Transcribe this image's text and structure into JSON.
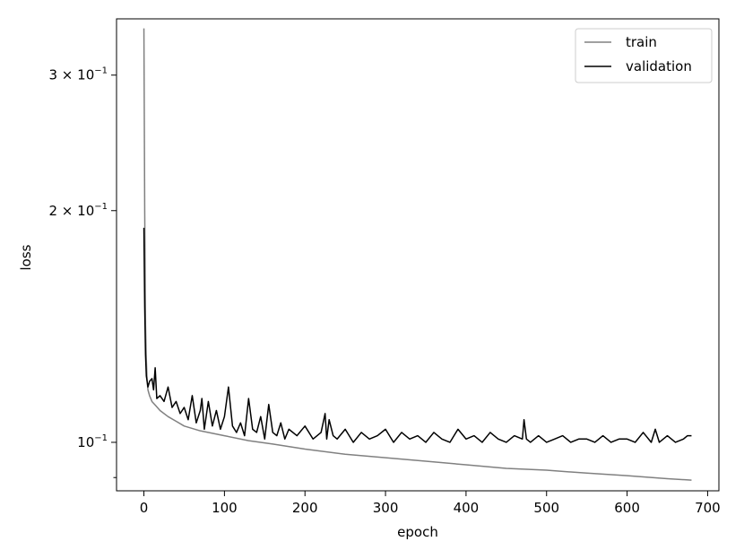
{
  "chart_data": {
    "type": "line",
    "title": "",
    "xlabel": "epoch",
    "ylabel": "loss",
    "xscale": "linear",
    "yscale": "log",
    "xlim": [
      -34,
      714
    ],
    "ylim": [
      0.0865,
      0.355
    ],
    "grid": false,
    "legend_position": "top-right",
    "x_ticks": [
      {
        "value": 0,
        "label": "0"
      },
      {
        "value": 100,
        "label": "100"
      },
      {
        "value": 200,
        "label": "200"
      },
      {
        "value": 300,
        "label": "300"
      },
      {
        "value": 400,
        "label": "400"
      },
      {
        "value": 500,
        "label": "500"
      },
      {
        "value": 600,
        "label": "600"
      },
      {
        "value": 700,
        "label": "700"
      }
    ],
    "y_ticks": [
      {
        "value": 0.1,
        "base": "10",
        "exponent": "−1"
      },
      {
        "value": 0.2,
        "base": "2 × 10",
        "exponent": "−1"
      },
      {
        "value": 0.3,
        "base": "3 × 10",
        "exponent": "−1"
      }
    ],
    "y_minor_ticks": [
      0.09
    ],
    "series": [
      {
        "name": "train",
        "color": "#808080",
        "x": [
          0,
          1,
          2,
          3,
          4,
          5,
          7,
          10,
          15,
          20,
          30,
          40,
          50,
          70,
          100,
          130,
          160,
          200,
          250,
          300,
          350,
          400,
          450,
          500,
          550,
          600,
          650,
          680
        ],
        "y": [
          0.345,
          0.2,
          0.142,
          0.128,
          0.12,
          0.117,
          0.115,
          0.113,
          0.1115,
          0.11,
          0.108,
          0.1065,
          0.105,
          0.1035,
          0.102,
          0.1005,
          0.0995,
          0.098,
          0.0965,
          0.0955,
          0.0945,
          0.0935,
          0.0925,
          0.092,
          0.0912,
          0.0905,
          0.0897,
          0.0893
        ]
      },
      {
        "name": "validation",
        "color": "#000000",
        "x": [
          0,
          1,
          2,
          3,
          4,
          5,
          7,
          10,
          12,
          14,
          16,
          20,
          25,
          30,
          35,
          40,
          45,
          50,
          55,
          60,
          65,
          70,
          72,
          75,
          80,
          85,
          90,
          95,
          100,
          105,
          110,
          115,
          120,
          125,
          130,
          135,
          140,
          145,
          150,
          155,
          160,
          165,
          170,
          175,
          180,
          190,
          200,
          210,
          220,
          225,
          227,
          230,
          235,
          240,
          250,
          260,
          270,
          280,
          290,
          300,
          310,
          320,
          330,
          340,
          350,
          360,
          370,
          380,
          390,
          400,
          410,
          420,
          430,
          440,
          450,
          460,
          470,
          472,
          475,
          480,
          490,
          500,
          510,
          520,
          530,
          540,
          550,
          560,
          570,
          580,
          590,
          600,
          610,
          620,
          630,
          635,
          640,
          650,
          660,
          670,
          675,
          680
        ],
        "y": [
          0.19,
          0.15,
          0.13,
          0.122,
          0.12,
          0.118,
          0.12,
          0.121,
          0.117,
          0.125,
          0.114,
          0.115,
          0.113,
          0.118,
          0.111,
          0.113,
          0.109,
          0.111,
          0.107,
          0.115,
          0.106,
          0.11,
          0.114,
          0.104,
          0.113,
          0.105,
          0.11,
          0.104,
          0.108,
          0.118,
          0.105,
          0.103,
          0.106,
          0.102,
          0.114,
          0.104,
          0.103,
          0.108,
          0.101,
          0.112,
          0.103,
          0.102,
          0.106,
          0.101,
          0.104,
          0.102,
          0.105,
          0.101,
          0.103,
          0.109,
          0.101,
          0.107,
          0.102,
          0.101,
          0.104,
          0.1,
          0.103,
          0.101,
          0.102,
          0.104,
          0.1,
          0.103,
          0.101,
          0.102,
          0.1,
          0.103,
          0.101,
          0.1,
          0.104,
          0.101,
          0.102,
          0.1,
          0.103,
          0.101,
          0.1,
          0.102,
          0.101,
          0.107,
          0.101,
          0.1,
          0.102,
          0.1,
          0.101,
          0.102,
          0.1,
          0.101,
          0.101,
          0.1,
          0.102,
          0.1,
          0.101,
          0.101,
          0.1,
          0.103,
          0.1,
          0.104,
          0.1,
          0.102,
          0.1,
          0.101,
          0.102,
          0.102
        ]
      }
    ]
  }
}
